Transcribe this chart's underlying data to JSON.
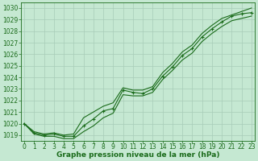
{
  "x": [
    0,
    1,
    2,
    3,
    4,
    5,
    6,
    7,
    8,
    9,
    10,
    11,
    12,
    13,
    14,
    15,
    16,
    17,
    18,
    19,
    20,
    21,
    22,
    23
  ],
  "line_marker": [
    1020.0,
    1019.2,
    1019.0,
    1019.1,
    1018.9,
    1018.9,
    1019.8,
    1020.4,
    1021.1,
    1021.3,
    1022.9,
    1022.7,
    1022.6,
    1023.0,
    1024.1,
    1024.9,
    1025.9,
    1026.5,
    1027.5,
    1028.2,
    1028.8,
    1029.3,
    1029.5,
    1029.6
  ],
  "line_upper": [
    1020.0,
    1019.3,
    1019.1,
    1019.2,
    1019.0,
    1019.1,
    1020.5,
    1021.0,
    1021.5,
    1021.8,
    1023.1,
    1022.9,
    1022.9,
    1023.2,
    1024.4,
    1025.2,
    1026.2,
    1026.8,
    1027.8,
    1028.5,
    1029.1,
    1029.4,
    1029.7,
    1030.0
  ],
  "line_lower": [
    1020.0,
    1019.1,
    1018.9,
    1018.9,
    1018.7,
    1018.7,
    1019.3,
    1019.8,
    1020.5,
    1020.9,
    1022.5,
    1022.4,
    1022.4,
    1022.7,
    1023.8,
    1024.6,
    1025.5,
    1026.1,
    1027.1,
    1027.8,
    1028.4,
    1028.9,
    1029.1,
    1029.3
  ],
  "ylim": [
    1018.5,
    1030.5
  ],
  "yticks": [
    1019,
    1020,
    1021,
    1022,
    1023,
    1024,
    1025,
    1026,
    1027,
    1028,
    1029,
    1030
  ],
  "xlim": [
    -0.3,
    23.3
  ],
  "xlabel": "Graphe pression niveau de la mer (hPa)",
  "line_color": "#1a6b1a",
  "bg_color": "#c5e8d2",
  "grid_color": "#a8ccb8",
  "linewidth": 0.8,
  "fontsize_label": 6.5,
  "fontsize_tick": 5.5
}
